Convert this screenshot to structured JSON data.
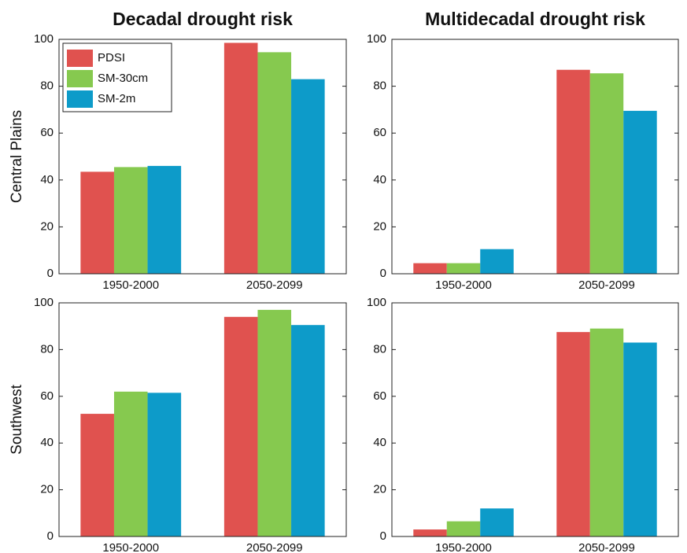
{
  "chart_data": [
    {
      "type": "bar",
      "title": "Decadal drought risk",
      "ylabel": "Central Plains",
      "categories": [
        "1950-2000",
        "2050-2099"
      ],
      "series": [
        {
          "name": "PDSI",
          "color": "#e0524f",
          "values": [
            43.5,
            98.5
          ]
        },
        {
          "name": "SM-30cm",
          "color": "#86c94f",
          "values": [
            45.5,
            94.5
          ]
        },
        {
          "name": "SM-2m",
          "color": "#0d9bc9",
          "values": [
            46,
            83
          ]
        }
      ],
      "ylim": [
        0,
        100
      ],
      "yticks": [
        0,
        20,
        40,
        60,
        80,
        100
      ],
      "legend": "upper left"
    },
    {
      "type": "bar",
      "title": "Multidecadal drought risk",
      "categories": [
        "1950-2000",
        "2050-2099"
      ],
      "series": [
        {
          "color": "#e0524f",
          "values": [
            4.5,
            87
          ]
        },
        {
          "color": "#86c94f",
          "values": [
            4.5,
            85.5
          ]
        },
        {
          "color": "#0d9bc9",
          "values": [
            10.5,
            69.5
          ]
        }
      ],
      "ylim": [
        0,
        100
      ],
      "yticks": [
        0,
        20,
        40,
        60,
        80,
        100
      ]
    },
    {
      "type": "bar",
      "ylabel": "Southwest",
      "categories": [
        "1950-2000",
        "2050-2099"
      ],
      "series": [
        {
          "color": "#e0524f",
          "values": [
            52.5,
            94
          ]
        },
        {
          "color": "#86c94f",
          "values": [
            62,
            97
          ]
        },
        {
          "color": "#0d9bc9",
          "values": [
            61.5,
            90.5
          ]
        }
      ],
      "ylim": [
        0,
        100
      ],
      "yticks": [
        0,
        20,
        40,
        60,
        80,
        100
      ]
    },
    {
      "type": "bar",
      "categories": [
        "1950-2000",
        "2050-2099"
      ],
      "series": [
        {
          "color": "#e0524f",
          "values": [
            3,
            87.5
          ]
        },
        {
          "color": "#86c94f",
          "values": [
            6.5,
            89
          ]
        },
        {
          "color": "#0d9bc9",
          "values": [
            12,
            83
          ]
        }
      ],
      "ylim": [
        0,
        100
      ],
      "yticks": [
        0,
        20,
        40,
        60,
        80,
        100
      ]
    }
  ]
}
